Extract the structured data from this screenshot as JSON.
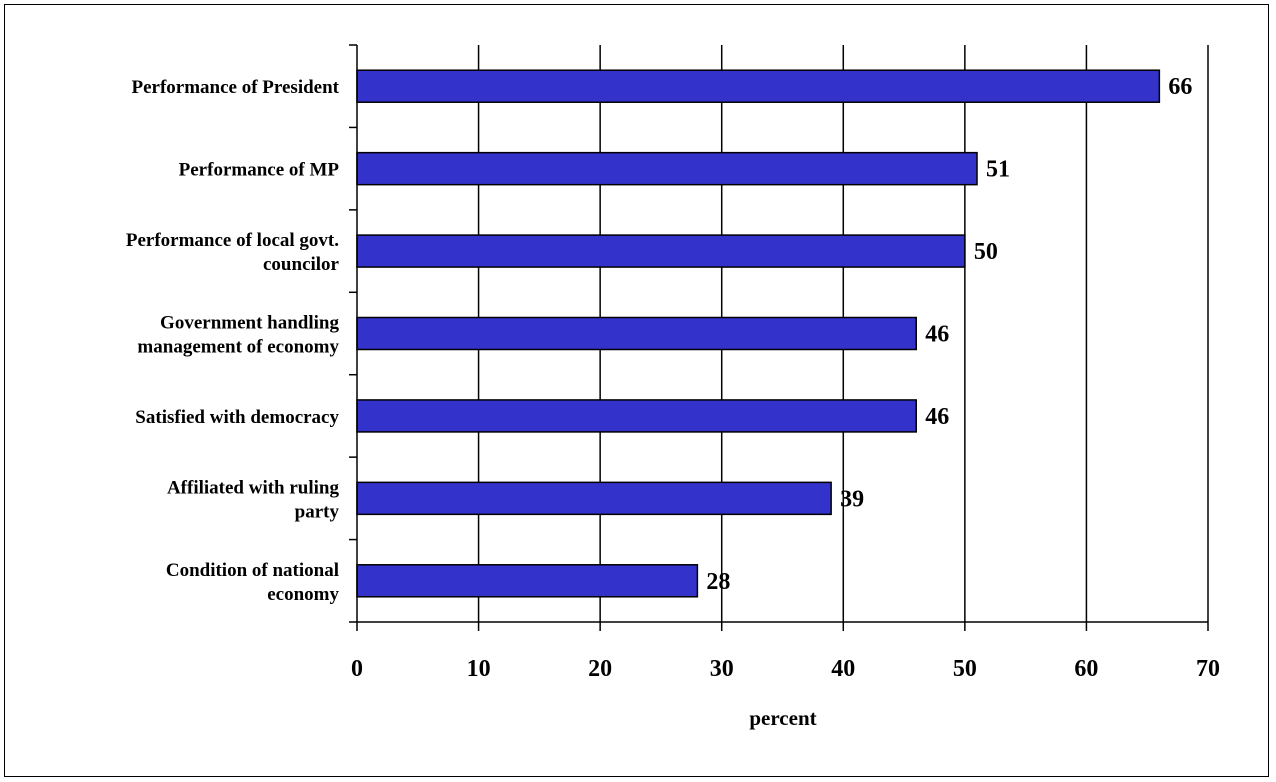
{
  "chart_data": {
    "type": "bar",
    "orientation": "horizontal",
    "categories": [
      "Performance of President",
      "Performance of MP",
      "Performance of local govt. councilor",
      "Government handling management of economy",
      "Satisfied with democracy",
      "Affiliated with ruling party",
      "Condition of national economy"
    ],
    "category_lines": [
      [
        "Performance of President"
      ],
      [
        "Performance of MP"
      ],
      [
        "Performance of local govt.",
        "councilor"
      ],
      [
        "Government handling",
        "management of economy"
      ],
      [
        "Satisfied with democracy"
      ],
      [
        "Affiliated with ruling",
        "party"
      ],
      [
        "Condition of national",
        "economy"
      ]
    ],
    "values": [
      66,
      51,
      50,
      46,
      46,
      39,
      28
    ],
    "xlabel": "percent",
    "ylabel": "",
    "title": "",
    "xlim": [
      0,
      70
    ],
    "xticks": [
      0,
      10,
      20,
      30,
      40,
      50,
      60,
      70
    ],
    "grid": "vertical",
    "legend": "none",
    "bar_color": "#3333cc"
  }
}
